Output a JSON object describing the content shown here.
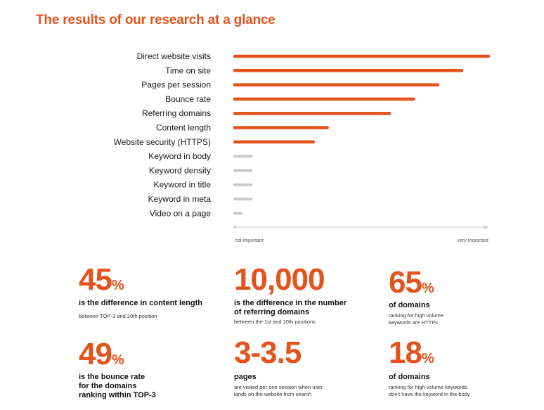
{
  "title": "The results of our research at a glance",
  "chart_data": {
    "type": "bar",
    "orientation": "horizontal",
    "categories": [
      "Direct website visits",
      "Time on site",
      "Pages per session",
      "Bounce rate",
      "Referring domains",
      "Content length",
      "Website security (HTTPS)",
      "Keyword in body",
      "Keyword density",
      "Keyword in title",
      "Keyword in meta",
      "Video on a page"
    ],
    "values": [
      100,
      89.5,
      80,
      70.5,
      61,
      36.5,
      31,
      6.5,
      6.5,
      6.5,
      6.5,
      2.5
    ],
    "axis_min_label": "not important",
    "axis_max_label": "very important",
    "colors": {
      "important": "#e4531c",
      "minor": "#c9c9c9",
      "axis": "#cfcfcf"
    },
    "highlight_count": 7
  },
  "stats": [
    {
      "number": "45",
      "suffix": "%",
      "headline": "is the difference in content length",
      "sub": "between TOP-3 and 20th position"
    },
    {
      "number": "10,000",
      "suffix": "",
      "headline": "is the difference in the number\nof referring domains",
      "sub": "between the 1st and 10th positions"
    },
    {
      "number": "65",
      "suffix": "%",
      "headline": "of domains",
      "sub": "ranking for high volume\nkeywords are HTTPs"
    },
    {
      "number": "49",
      "suffix": "%",
      "headline": "is the bounce rate\nfor the domains\nranking within TOP-3",
      "sub": ""
    },
    {
      "number": "3-3.5",
      "suffix": "",
      "headline": "pages",
      "sub": "are visited per one session when user\nlands on the website from search"
    },
    {
      "number": "18",
      "suffix": "%",
      "headline": "of domains",
      "sub": "ranking for high volume keywords\ndon't have the keyword in the body"
    }
  ]
}
